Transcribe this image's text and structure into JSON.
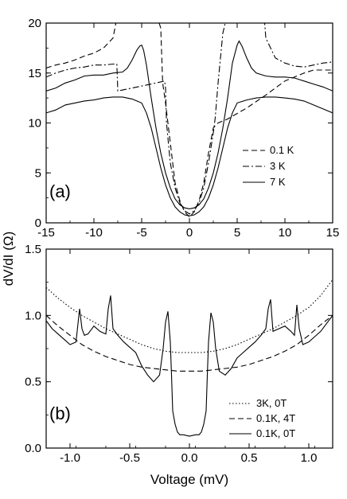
{
  "ylabel_shared": "dV/dI (Ω)",
  "chart_data": [
    {
      "type": "line",
      "panel_label": "(a)",
      "xlabel": "",
      "ylabel": "dV/dI (Ω)",
      "xlim": [
        -15,
        15
      ],
      "ylim": [
        0,
        20
      ],
      "xticks": [
        -15,
        -10,
        -5,
        0,
        5,
        10,
        15
      ],
      "yticks": [
        0,
        5,
        10,
        15,
        20
      ],
      "legend_position": "center-right",
      "series": [
        {
          "name": "0.1 K",
          "style": "dashed",
          "x": [
            -15,
            -14,
            -13,
            -12,
            -11,
            -10,
            -9,
            -8,
            -7.8,
            -7.5,
            -7,
            -6,
            -5,
            -4.5,
            -4,
            -3.8,
            -3.5,
            -3,
            -2.8,
            -2.5,
            -2,
            -1.5,
            -1,
            -0.5,
            0,
            0.5,
            1,
            1.5,
            2,
            2.5,
            3,
            3.5,
            3.8,
            4,
            6,
            8,
            10,
            12,
            13,
            15
          ],
          "y": [
            15.5,
            15.8,
            16,
            16.3,
            16.7,
            17,
            17.5,
            18.5,
            19.5,
            21,
            21,
            21,
            21,
            21,
            21,
            21,
            21,
            19.5,
            14,
            12,
            8,
            4,
            2.2,
            1.1,
            0.6,
            1.1,
            2.2,
            4,
            7,
            9.5,
            10,
            10.2,
            10.3,
            10.4,
            11.5,
            12.8,
            14.2,
            15,
            15.3,
            15.3
          ]
        },
        {
          "name": "3 K",
          "style": "dashdot",
          "x": [
            -15,
            -14,
            -13,
            -12,
            -11,
            -10,
            -9,
            -8,
            -7.6,
            -7.5,
            -6,
            -4,
            -2.6,
            -2.5,
            -2.4,
            -2,
            -1.5,
            -1,
            -0.5,
            0,
            0.5,
            1,
            1.5,
            2,
            2.5,
            2.7,
            3,
            3.5,
            4,
            6,
            7,
            7.5,
            7.8,
            8,
            9,
            10,
            11,
            12,
            13,
            14,
            15
          ],
          "y": [
            14.6,
            15,
            15.3,
            15.5,
            15.6,
            15.8,
            15.8,
            15.9,
            15.9,
            13.2,
            13.5,
            13.9,
            14.2,
            13.5,
            10,
            6,
            3.5,
            2,
            1.2,
            0.9,
            1.2,
            2,
            3.5,
            6,
            9,
            10.5,
            14,
            19,
            21,
            21,
            21,
            21,
            21,
            18.5,
            16.5,
            16,
            15.7,
            15.6,
            15.8,
            16,
            16.1
          ]
        },
        {
          "name": "7 K",
          "style": "solid",
          "x": [
            -15,
            -14,
            -13,
            -12,
            -11,
            -10,
            -9,
            -8,
            -7,
            -6.5,
            -6,
            -5.5,
            -5.2,
            -5,
            -4.8,
            -4.5,
            -4,
            -3.5,
            -3,
            -2.5,
            -2,
            -1.5,
            -1,
            -0.5,
            0,
            0.5,
            1,
            1.5,
            2,
            2.5,
            3,
            3.5,
            4,
            4.5,
            5,
            5.2,
            5.5,
            6,
            6.5,
            7,
            8,
            9,
            10,
            11,
            12,
            13,
            14,
            15
          ],
          "y": [
            13.2,
            13.5,
            14,
            14.3,
            14.7,
            14.8,
            14.8,
            15,
            15.1,
            15.5,
            16.3,
            17.3,
            17.7,
            17.8,
            17.3,
            15.8,
            12.5,
            9.5,
            7,
            5,
            3.5,
            2.4,
            1.8,
            1.5,
            1.4,
            1.5,
            1.8,
            2.4,
            3.5,
            5,
            7,
            9.5,
            12.5,
            16,
            17.8,
            18.2,
            17.7,
            16.5,
            15.5,
            15,
            14.7,
            14.6,
            14.6,
            14.5,
            14.2,
            13.9,
            13.6,
            13.2
          ]
        },
        {
          "name": "",
          "style": "solid",
          "x": [
            -15,
            -14,
            -13,
            -12,
            -11,
            -10,
            -9,
            -8,
            -7,
            -6,
            -5,
            -4.5,
            -4,
            -3.5,
            -3,
            -2.5,
            -2,
            -1.5,
            -1,
            -0.5,
            0,
            0.5,
            1,
            1.5,
            2,
            2.5,
            3,
            3.5,
            4,
            4.5,
            5,
            6,
            7,
            8,
            9,
            10,
            11,
            12,
            13,
            14,
            15
          ],
          "y": [
            11,
            11.3,
            11.8,
            12,
            12.2,
            12.3,
            12.5,
            12.6,
            12.6,
            12.4,
            12,
            11,
            9.5,
            7.5,
            5.5,
            3.8,
            2.5,
            1.6,
            1.1,
            0.8,
            0.7,
            0.8,
            1.1,
            1.6,
            2.5,
            3.8,
            5.5,
            7.5,
            9.5,
            11,
            12,
            12.3,
            12.5,
            12.6,
            12.6,
            12.5,
            12.4,
            12.2,
            11.8,
            11.4,
            11
          ]
        }
      ]
    },
    {
      "type": "line",
      "panel_label": "(b)",
      "xlabel": "Voltage (mV)",
      "ylabel": "dV/dI (Ω)",
      "xlim": [
        -1.2,
        1.2
      ],
      "ylim": [
        0,
        1.5
      ],
      "xticks": [
        -1.0,
        -0.5,
        0.0,
        0.5,
        1.0
      ],
      "xtick_labels": [
        "-1.0",
        "-0.5",
        "0.0",
        "0.5",
        "1.0"
      ],
      "yticks": [
        0.0,
        0.5,
        1.0,
        1.5
      ],
      "ytick_labels": [
        "0.0",
        "0.5",
        "1.0",
        "1.5"
      ],
      "legend_position": "lower-right",
      "series": [
        {
          "name": "3K, 0T",
          "style": "dotted",
          "x": [
            -1.2,
            -1.1,
            -1.0,
            -0.9,
            -0.8,
            -0.7,
            -0.6,
            -0.5,
            -0.4,
            -0.3,
            -0.2,
            -0.1,
            0,
            0.1,
            0.2,
            0.3,
            0.4,
            0.5,
            0.6,
            0.7,
            0.8,
            0.9,
            1.0,
            1.1,
            1.2
          ],
          "y": [
            1.21,
            1.13,
            1.06,
            1.0,
            0.95,
            0.9,
            0.86,
            0.82,
            0.78,
            0.75,
            0.73,
            0.72,
            0.72,
            0.72,
            0.73,
            0.75,
            0.78,
            0.82,
            0.86,
            0.9,
            0.95,
            1.0,
            1.06,
            1.15,
            1.27
          ]
        },
        {
          "name": "0.1K, 4T",
          "style": "dashed",
          "x": [
            -1.2,
            -1.1,
            -1.0,
            -0.9,
            -0.8,
            -0.7,
            -0.6,
            -0.5,
            -0.4,
            -0.3,
            -0.2,
            -0.1,
            0,
            0.1,
            0.2,
            0.3,
            0.4,
            0.5,
            0.6,
            0.7,
            0.8,
            0.9,
            1.0,
            1.1,
            1.2
          ],
          "y": [
            1.0,
            0.92,
            0.85,
            0.78,
            0.73,
            0.69,
            0.66,
            0.63,
            0.61,
            0.6,
            0.59,
            0.58,
            0.58,
            0.58,
            0.59,
            0.6,
            0.61,
            0.63,
            0.66,
            0.69,
            0.73,
            0.78,
            0.85,
            0.93,
            1.0
          ]
        },
        {
          "name": "0.1K, 0T",
          "style": "solid",
          "x": [
            -1.2,
            -1.15,
            -1.1,
            -1.05,
            -1.0,
            -0.95,
            -0.92,
            -0.9,
            -0.88,
            -0.85,
            -0.8,
            -0.75,
            -0.7,
            -0.68,
            -0.66,
            -0.64,
            -0.6,
            -0.55,
            -0.5,
            -0.45,
            -0.4,
            -0.35,
            -0.3,
            -0.25,
            -0.22,
            -0.2,
            -0.18,
            -0.16,
            -0.15,
            -0.14,
            -0.12,
            -0.1,
            -0.08,
            -0.05,
            0,
            0.05,
            0.08,
            0.1,
            0.12,
            0.14,
            0.15,
            0.16,
            0.18,
            0.2,
            0.22,
            0.25,
            0.3,
            0.35,
            0.4,
            0.45,
            0.5,
            0.55,
            0.6,
            0.64,
            0.66,
            0.68,
            0.7,
            0.75,
            0.8,
            0.85,
            0.88,
            0.9,
            0.92,
            0.95,
            1.0,
            1.05,
            1.1,
            1.15,
            1.2
          ],
          "y": [
            0.96,
            0.9,
            0.86,
            0.82,
            0.78,
            0.8,
            1.05,
            0.9,
            0.85,
            0.86,
            0.92,
            0.88,
            0.86,
            1.05,
            1.15,
            0.9,
            0.85,
            0.8,
            0.76,
            0.72,
            0.62,
            0.55,
            0.5,
            0.55,
            0.75,
            0.95,
            1.03,
            0.8,
            0.55,
            0.28,
            0.18,
            0.12,
            0.1,
            0.1,
            0.09,
            0.1,
            0.1,
            0.12,
            0.18,
            0.28,
            0.55,
            0.8,
            1.02,
            0.95,
            0.75,
            0.58,
            0.55,
            0.6,
            0.68,
            0.72,
            0.76,
            0.8,
            0.85,
            0.9,
            1.05,
            1.12,
            0.88,
            0.9,
            0.92,
            0.88,
            0.85,
            1.08,
            0.9,
            0.78,
            0.8,
            0.84,
            0.88,
            0.94,
            1.0
          ]
        }
      ]
    }
  ]
}
